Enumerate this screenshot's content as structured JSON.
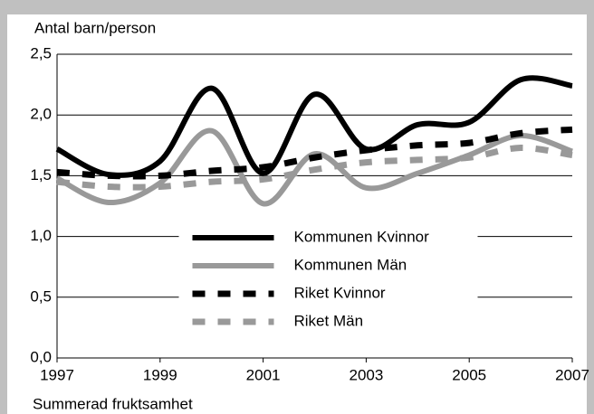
{
  "chart_data": {
    "type": "line",
    "ylabel": "Antal barn/person",
    "xlabel": "Summerad fruktsamhet",
    "x": [
      1997,
      1998,
      1999,
      2000,
      2001,
      2002,
      2003,
      2004,
      2005,
      2006,
      2007
    ],
    "series": [
      {
        "name": "Kommunen Kvinnor",
        "color": "#000000",
        "dashed": false,
        "values": [
          1.72,
          1.51,
          1.62,
          2.22,
          1.52,
          2.17,
          1.72,
          1.92,
          1.94,
          2.29,
          2.24
        ]
      },
      {
        "name": "Kommunen Män",
        "color": "#999999",
        "dashed": false,
        "values": [
          1.48,
          1.28,
          1.44,
          1.87,
          1.27,
          1.68,
          1.4,
          1.52,
          1.67,
          1.83,
          1.7
        ]
      },
      {
        "name": "Riket Kvinnor",
        "color": "#000000",
        "dashed": true,
        "values": [
          1.53,
          1.5,
          1.5,
          1.54,
          1.57,
          1.65,
          1.71,
          1.75,
          1.77,
          1.85,
          1.88
        ]
      },
      {
        "name": "Riket Män",
        "color": "#999999",
        "dashed": true,
        "values": [
          1.45,
          1.41,
          1.41,
          1.45,
          1.47,
          1.55,
          1.61,
          1.63,
          1.65,
          1.73,
          1.67
        ]
      }
    ],
    "xlim": [
      1997,
      2007
    ],
    "xticks": [
      1997,
      1999,
      2001,
      2003,
      2005,
      2007
    ],
    "ylim": [
      0,
      2.5
    ],
    "yticks": [
      {
        "value": 0,
        "label": "0,0"
      },
      {
        "value": 0.5,
        "label": "0,5"
      },
      {
        "value": 1,
        "label": "1,0"
      },
      {
        "value": 1.5,
        "label": "1,5"
      },
      {
        "value": 2,
        "label": "2,0"
      },
      {
        "value": 2.5,
        "label": "2,5"
      }
    ],
    "grid": true,
    "legend_loc": "lower center",
    "smooth": true
  }
}
